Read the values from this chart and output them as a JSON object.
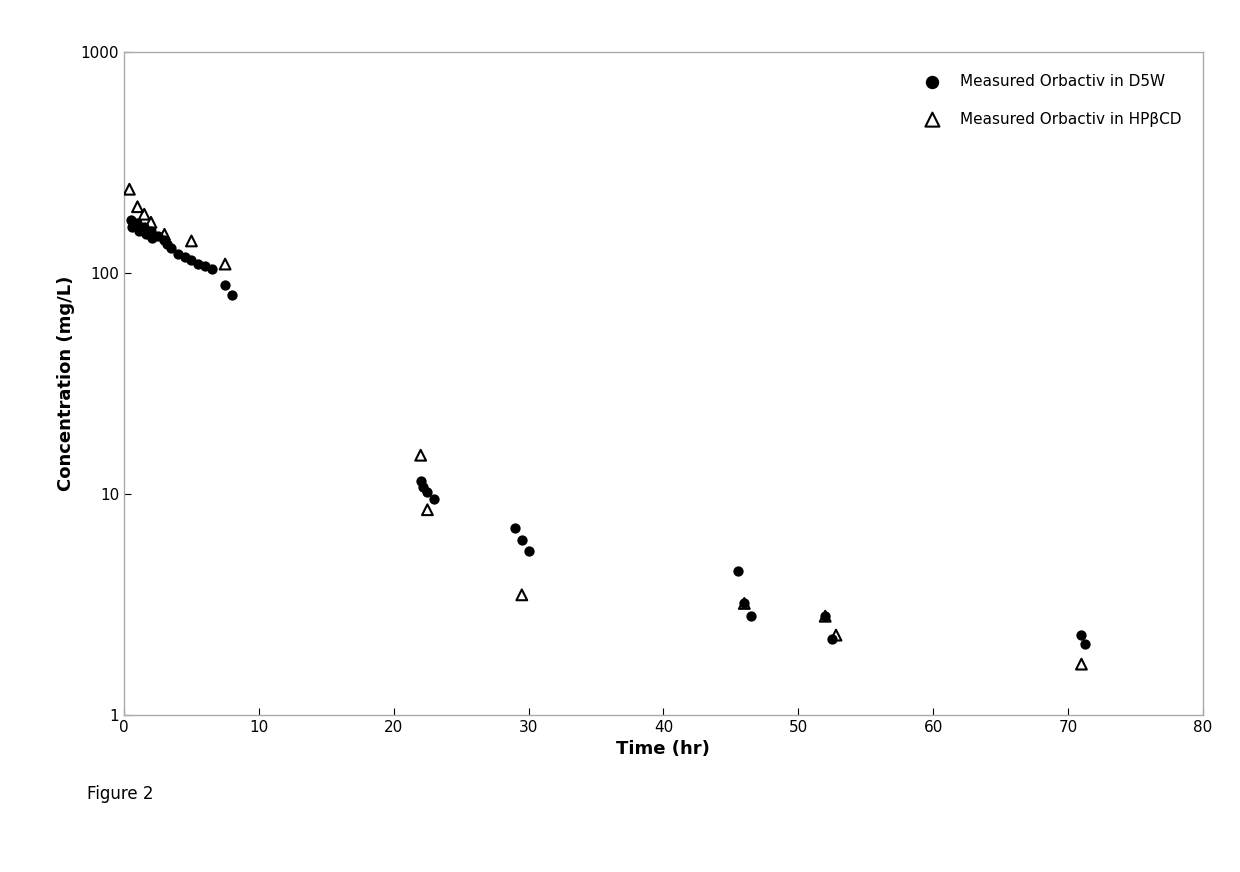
{
  "d5w_x": [
    0.5,
    0.6,
    1.0,
    1.1,
    1.5,
    1.6,
    2.0,
    2.1,
    2.5,
    3.0,
    3.2,
    3.5,
    4.0,
    4.5,
    5.0,
    5.5,
    6.0,
    6.5,
    7.5,
    8.0,
    22.0,
    22.2,
    22.5,
    23.0,
    29.0,
    29.5,
    30.0,
    45.5,
    46.0,
    46.5,
    52.0,
    52.5,
    71.0,
    71.3
  ],
  "d5w_y": [
    175,
    162,
    168,
    155,
    162,
    150,
    155,
    145,
    148,
    142,
    135,
    130,
    122,
    118,
    115,
    110,
    108,
    105,
    88,
    80,
    11.5,
    10.8,
    10.2,
    9.5,
    7.0,
    6.2,
    5.5,
    4.5,
    3.2,
    2.8,
    2.8,
    2.2,
    2.3,
    2.1
  ],
  "hpbcd_x": [
    0.4,
    1.0,
    1.5,
    2.0,
    3.0,
    5.0,
    7.5,
    22.0,
    22.5,
    29.5,
    46.0,
    52.0,
    52.8,
    71.0
  ],
  "hpbcd_y": [
    240,
    200,
    185,
    170,
    150,
    140,
    110,
    15.0,
    8.5,
    3.5,
    3.2,
    2.8,
    2.3,
    1.7
  ],
  "xlabel": "Time (hr)",
  "ylabel": "Concentration (mg/L)",
  "legend_d5w": "Measured Orbactiv in D5W",
  "legend_hpbcd": "Measured Orbactiv in HPβCD",
  "figure_label": "Figure 2",
  "xlim": [
    0,
    80
  ],
  "ylim": [
    1,
    1000
  ],
  "xticks": [
    0,
    10,
    20,
    30,
    40,
    50,
    60,
    70,
    80
  ],
  "yticks": [
    1,
    10,
    100,
    1000
  ],
  "spine_color": "#aaaaaa",
  "marker_color": "#000000",
  "ms_circle": 55,
  "ms_triangle": 60,
  "lw_triangle": 1.5,
  "font_size_labels": 13,
  "font_size_ticks": 11,
  "font_size_legend": 11,
  "font_size_figure_label": 12
}
